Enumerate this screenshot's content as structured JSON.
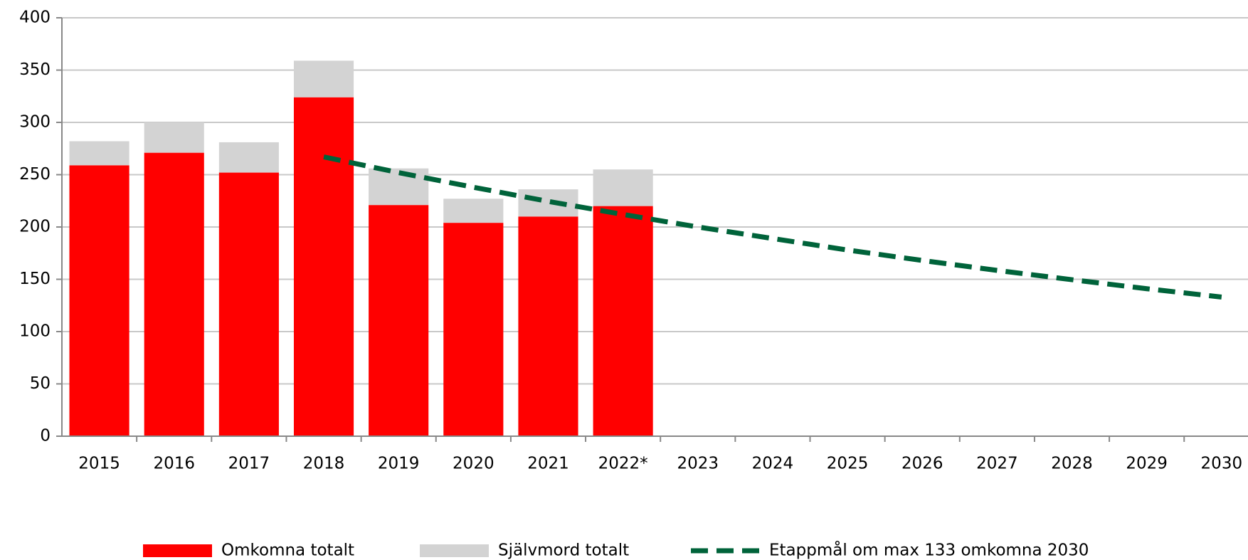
{
  "chart_data": {
    "type": "bar",
    "stacked": true,
    "categories": [
      "2015",
      "2016",
      "2017",
      "2018",
      "2019",
      "2020",
      "2021",
      "2022*",
      "2023",
      "2024",
      "2025",
      "2026",
      "2027",
      "2028",
      "2029",
      "2030"
    ],
    "series": [
      {
        "name": "Omkomna totalt",
        "color": "#ff0000",
        "type": "bar",
        "values": [
          259,
          271,
          252,
          324,
          221,
          204,
          210,
          220,
          null,
          null,
          null,
          null,
          null,
          null,
          null,
          null
        ]
      },
      {
        "name": "Självmord totalt",
        "color": "#d3d3d3",
        "type": "bar",
        "values": [
          23,
          29,
          29,
          35,
          35,
          23,
          26,
          35,
          null,
          null,
          null,
          null,
          null,
          null,
          null,
          null
        ]
      },
      {
        "name": "Etappmål om max 133 omkomna 2030",
        "color": "#00633a",
        "type": "line",
        "dashed": true,
        "values": [
          null,
          null,
          null,
          267,
          252,
          238,
          224.5,
          212,
          200,
          189,
          178,
          168,
          158.5,
          149.6,
          141,
          133
        ]
      }
    ],
    "ylim": [
      0,
      400
    ],
    "yticks": [
      0,
      50,
      100,
      150,
      200,
      250,
      300,
      350,
      400
    ],
    "grid": true,
    "legend": "bottom"
  }
}
